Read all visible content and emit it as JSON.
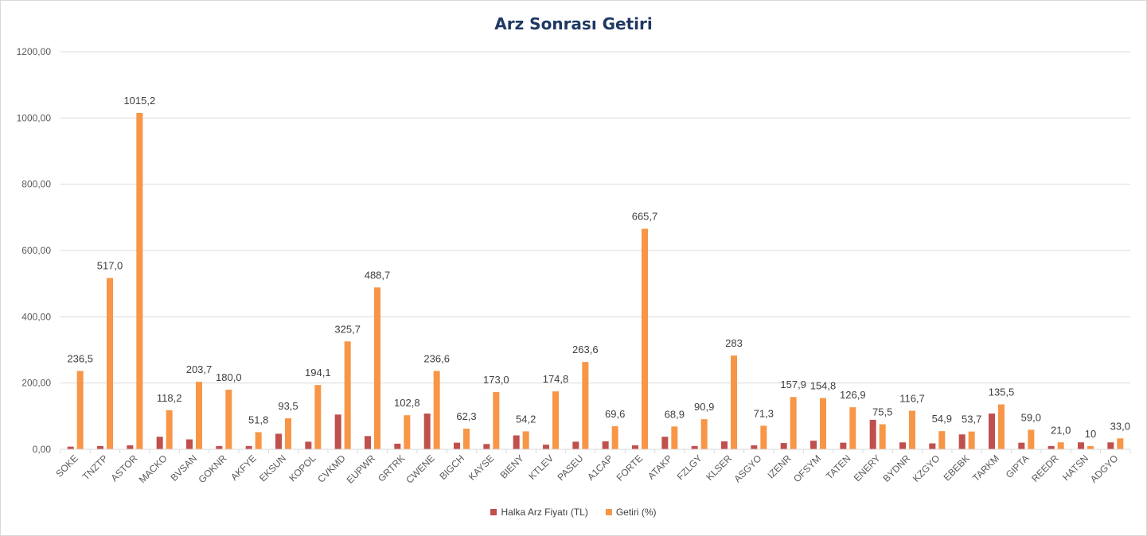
{
  "chart_data": {
    "type": "bar",
    "title": "Arz Sonrası Getiri",
    "categories": [
      "SOKE",
      "TNZTP",
      "ASTOR",
      "MACKO",
      "BVSAN",
      "GOKNR",
      "AKFYE",
      "EKSUN",
      "KOPOL",
      "CVKMD",
      "EUPWR",
      "GRTRK",
      "CWENE",
      "BIGCH",
      "KAYSE",
      "BIENY",
      "KTLEV",
      "PASEU",
      "A1CAP",
      "FORTE",
      "ATAKP",
      "FZLGY",
      "KLSER",
      "ASGYO",
      "IZENR",
      "OFSYM",
      "TATEN",
      "ENERY",
      "BYDNR",
      "KZGYO",
      "EBEBK",
      "TARKM",
      "GIPTA",
      "REEDR",
      "HATSN",
      "ADGYO"
    ],
    "series": [
      {
        "name": "Halka Arz Fiyatı (TL)",
        "color": "#c0504d",
        "values": [
          8,
          10,
          12,
          38,
          30,
          10,
          10,
          47,
          23,
          105,
          40,
          17,
          108,
          20,
          16,
          42,
          14,
          23,
          24,
          12,
          38,
          10,
          24,
          12,
          19,
          26,
          20,
          89,
          21,
          18,
          45,
          108,
          20,
          10,
          21,
          21
        ]
      },
      {
        "name": "Getiri (%)",
        "color": "#f79646",
        "values": [
          236.5,
          517.0,
          1015.2,
          118.2,
          203.7,
          180.0,
          51.8,
          93.5,
          194.1,
          325.7,
          488.7,
          102.8,
          236.6,
          62.3,
          173.0,
          54.2,
          174.8,
          263.6,
          69.6,
          665.7,
          68.9,
          90.9,
          283,
          71.3,
          157.9,
          154.8,
          126.9,
          75.5,
          116.7,
          54.9,
          53.7,
          135.5,
          59.0,
          21.0,
          10,
          33.0
        ],
        "data_labels": [
          "236,5",
          "517,0",
          "1015,2",
          "118,2",
          "203,7",
          "180,0",
          "51,8",
          "93,5",
          "194,1",
          "325,7",
          "488,7",
          "102,8",
          "236,6",
          "62,3",
          "173,0",
          "54,2",
          "174,8",
          "263,6",
          "69,6",
          "665,7",
          "68,9",
          "90,9",
          "283",
          "71,3",
          "157,9",
          "154,8",
          "126,9",
          "75,5",
          "116,7",
          "54,9",
          "53,7",
          "135,5",
          "59,0",
          "21,0",
          "10",
          "33,0"
        ]
      }
    ],
    "ylim": [
      0,
      1200
    ],
    "yticks": [
      0,
      200,
      400,
      600,
      800,
      1000,
      1200
    ],
    "ytick_labels": [
      "0,00",
      "200,00",
      "400,00",
      "600,00",
      "800,00",
      "1000,00",
      "1200,00"
    ],
    "grid": true,
    "legend_position": "bottom"
  }
}
